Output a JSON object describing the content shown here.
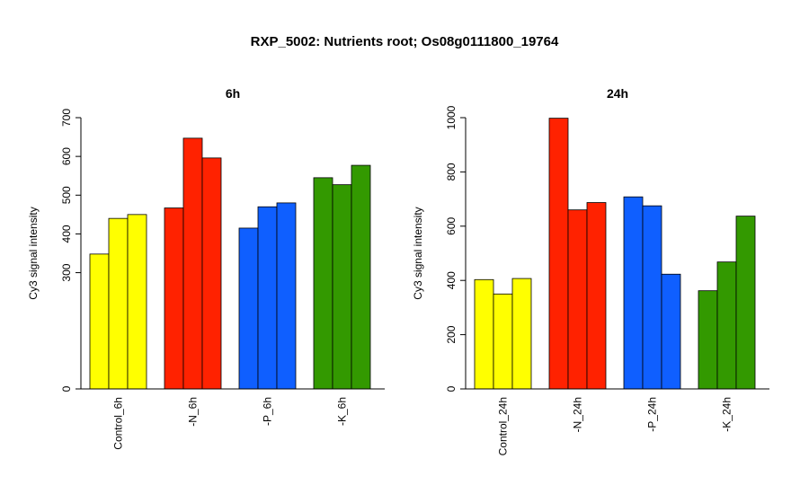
{
  "title": "RXP_5002: Nutrients root; Os08g0111800_19764",
  "chart_data": [
    {
      "type": "bar",
      "title": "6h",
      "ylabel": "Cy3 signal intensity",
      "ylim": [
        0,
        700
      ],
      "yticks": [
        0,
        300,
        400,
        500,
        600,
        700
      ],
      "categories": [
        "Control_6h",
        "-N_6h",
        "-P_6h",
        "-K_6h"
      ],
      "colors": [
        "#ffff00",
        "#ff2200",
        "#0f5fff",
        "#339900"
      ],
      "values": [
        [
          348,
          440,
          450
        ],
        [
          467,
          647,
          596
        ],
        [
          415,
          470,
          480
        ],
        [
          545,
          527,
          577
        ]
      ],
      "grid": false
    },
    {
      "type": "bar",
      "title": "24h",
      "ylabel": "Cy3 signal intensity",
      "ylim": [
        0,
        1000
      ],
      "yticks": [
        0,
        200,
        400,
        600,
        800,
        1000
      ],
      "categories": [
        "Control_24h",
        "-N_24h",
        "-P_24h",
        "-K_24h"
      ],
      "colors": [
        "#ffff00",
        "#ff2200",
        "#0f5fff",
        "#339900"
      ],
      "values": [
        [
          403,
          350,
          407
        ],
        [
          998,
          660,
          687
        ],
        [
          708,
          675,
          423
        ],
        [
          362,
          468,
          637
        ]
      ],
      "grid": false
    }
  ]
}
